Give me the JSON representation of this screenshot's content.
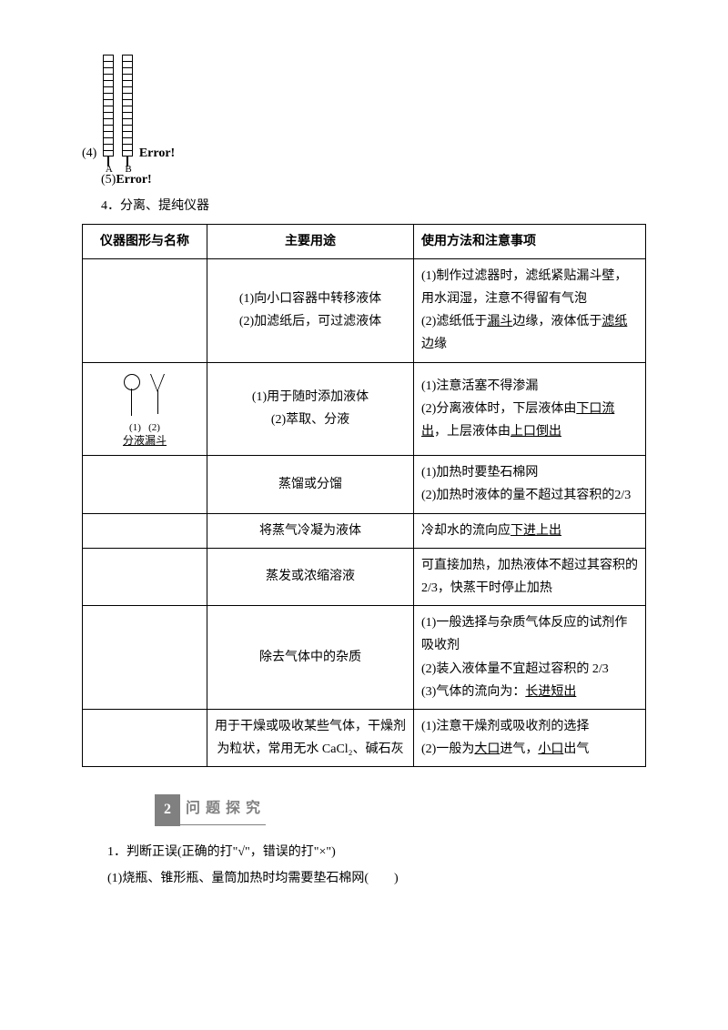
{
  "intro": {
    "item4_num": "(4)",
    "burette_A": "A",
    "burette_B": "B",
    "error": "Error!",
    "item5": "(5)Error!",
    "heading4": "4．分离、提纯仪器"
  },
  "table": {
    "headers": [
      "仪器图形与名称",
      "主要用途",
      "使用方法和注意事项"
    ],
    "rows": [
      {
        "img": "",
        "use": "(1)向小口容器中转移液体\n(2)加滤纸后，可过滤液体",
        "note_pre1": "(1)制作过滤器时，滤纸紧贴漏斗壁，用水润湿，注意不得留有气泡",
        "note_pre2a": "(2)滤纸低于",
        "note_under2a": "漏斗",
        "note_mid2": "边缘，液体低于",
        "note_under2b": "滤纸",
        "note_post2": "边缘"
      },
      {
        "img_label1": "(1)",
        "img_label2": "(2)",
        "img_name": "分液漏斗",
        "use": "(1)用于随时添加液体\n(2)萃取、分液",
        "note_pre1": "(1)注意活塞不得渗漏",
        "note_pre2a": "(2)分离液体时，下层液体由",
        "note_under2a": "下口流出",
        "note_mid2": "，上层液体由",
        "note_under2b": "上口倒出",
        "note_post2": ""
      },
      {
        "img": "",
        "use": "蒸馏或分馏",
        "note": "(1)加热时要垫石棉网\n(2)加热时液体的量不超过其容积的2/3"
      },
      {
        "img": "",
        "use": "将蒸气冷凝为液体",
        "note_pre": "冷却水的流向应",
        "note_under": "下进上出"
      },
      {
        "img": "",
        "use": "蒸发或浓缩溶液",
        "note": "可直接加热，加热液体不超过其容积的 2/3，快蒸干时停止加热"
      },
      {
        "img": "",
        "use": "除去气体中的杂质",
        "note_line1": "(1)一般选择与杂质气体反应的试剂作吸收剂",
        "note_line2": "(2)装入液体量不宜超过容积的 2/3",
        "note_line3_pre": "(3)气体的流向为：",
        "note_line3_under": "长进短出"
      },
      {
        "img": "",
        "use": "用于干燥或吸收某些气体，干燥剂为粒状，常用无水 CaCl₂、碱石灰",
        "note_pre1": "(1)注意干燥剂或吸收剂的选择",
        "note_pre2a": "(2)一般为",
        "note_under2a": "大口",
        "note_mid2": "进气，",
        "note_under2b": "小口",
        "note_post2": "出气"
      }
    ]
  },
  "section": {
    "num": "2",
    "title": "问题探究"
  },
  "questions": {
    "q1": "1．判断正误(正确的打\"√\"，错误的打\"×\")",
    "q1_1": "(1)烧瓶、锥形瓶、量筒加热时均需要垫石棉网(　　)"
  }
}
